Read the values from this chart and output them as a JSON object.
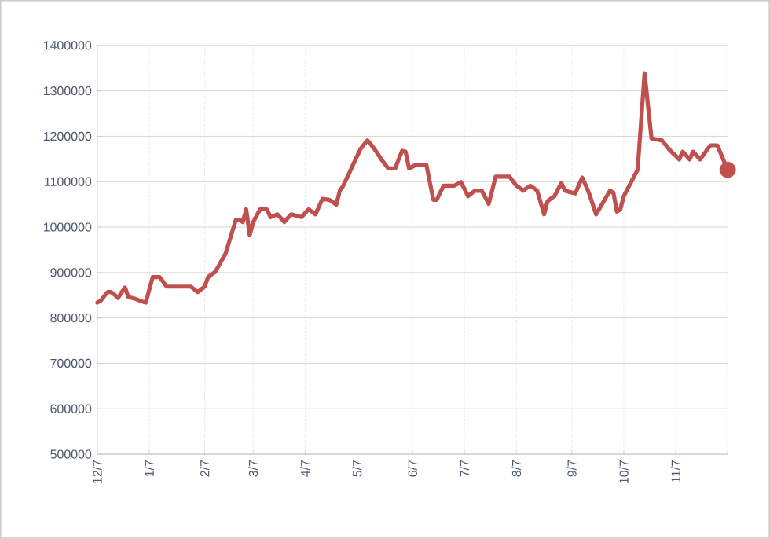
{
  "chart_data": {
    "type": "line",
    "categories": [
      "12/7",
      null,
      null,
      null,
      null,
      null,
      null,
      null,
      null,
      null,
      null,
      null,
      null,
      null,
      null,
      "1/7",
      null,
      null,
      null,
      null,
      null,
      null,
      null,
      null,
      null,
      null,
      null,
      null,
      null,
      null,
      null,
      "2/7",
      null,
      null,
      null,
      null,
      null,
      null,
      null,
      null,
      null,
      null,
      null,
      null,
      null,
      "3/7",
      null,
      null,
      null,
      null,
      null,
      null,
      null,
      null,
      null,
      null,
      null,
      null,
      null,
      null,
      "4/7",
      null,
      null,
      null,
      null,
      null,
      null,
      null,
      null,
      null,
      null,
      null,
      null,
      null,
      null,
      "5/7",
      null,
      null,
      null,
      null,
      null,
      null,
      null,
      null,
      null,
      null,
      null,
      null,
      null,
      null,
      null,
      "6/7",
      null,
      null,
      null,
      null,
      null,
      null,
      null,
      null,
      null,
      null,
      null,
      null,
      null,
      null,
      "7/7",
      null,
      null,
      null,
      null,
      null,
      null,
      null,
      null,
      null,
      null,
      null,
      null,
      null,
      null,
      "8/7",
      null,
      null,
      null,
      null,
      null,
      null,
      null,
      null,
      null,
      null,
      null,
      null,
      null,
      null,
      null,
      "9/7",
      null,
      null,
      null,
      null,
      null,
      null,
      null,
      null,
      null,
      null,
      null,
      null,
      null,
      null,
      "10/7",
      null,
      null,
      null,
      null,
      null,
      null,
      null,
      null,
      null,
      null,
      null,
      null,
      null,
      null,
      "11/7",
      null,
      null,
      null,
      null,
      null,
      null,
      null,
      null,
      null,
      null,
      null,
      null,
      null,
      null,
      null
    ],
    "ylim": [
      500000,
      1400000
    ],
    "yticks": [
      500000,
      600000,
      700000,
      800000,
      900000,
      1000000,
      1100000,
      1200000,
      1300000,
      1400000
    ],
    "grid": true,
    "marker": "none",
    "line_style": "solid",
    "series": [
      {
        "color": "#c0504d",
        "values": [
          834000,
          838000,
          848000,
          857000,
          857000,
          851000,
          844000,
          856000,
          867000,
          846000,
          844000,
          842000,
          839000,
          836000,
          834000,
          862000,
          890000,
          890000,
          890000,
          880000,
          869000,
          869000,
          869000,
          869000,
          869000,
          869000,
          869000,
          869000,
          863000,
          857000,
          863000,
          869000,
          890000,
          896000,
          901000,
          914000,
          928000,
          941000,
          966000,
          991000,
          1016000,
          1016000,
          1011000,
          1039000,
          982000,
          1011000,
          1025000,
          1039000,
          1039000,
          1039000,
          1022000,
          1025000,
          1028000,
          1020000,
          1011000,
          1020000,
          1028000,
          1026000,
          1024000,
          1022000,
          1031000,
          1039000,
          1034000,
          1028000,
          1045000,
          1062000,
          1061000,
          1060000,
          1055000,
          1049000,
          1080000,
          1091000,
          1107000,
          1123000,
          1140000,
          1156000,
          1172000,
          1182000,
          1191000,
          1182000,
          1172000,
          1161000,
          1149000,
          1139000,
          1129000,
          1129000,
          1129000,
          1149000,
          1168000,
          1166000,
          1129000,
          1133000,
          1137000,
          1137000,
          1137000,
          1137000,
          1099000,
          1060000,
          1060000,
          1076000,
          1091000,
          1091000,
          1091000,
          1091000,
          1095000,
          1099000,
          1084000,
          1068000,
          1074000,
          1080000,
          1080000,
          1080000,
          1066000,
          1051000,
          1081000,
          1111000,
          1111000,
          1111000,
          1111000,
          1111000,
          1101000,
          1091000,
          1086000,
          1080000,
          1086000,
          1091000,
          1086000,
          1080000,
          1054000,
          1028000,
          1057000,
          1063000,
          1068000,
          1083000,
          1097000,
          1080000,
          1078000,
          1076000,
          1074000,
          1092000,
          1109000,
          1092000,
          1074000,
          1051000,
          1028000,
          1041000,
          1054000,
          1067000,
          1080000,
          1076000,
          1034000,
          1039000,
          1068000,
          1083000,
          1097000,
          1112000,
          1126000,
          1233000,
          1339000,
          1267000,
          1195000,
          1194000,
          1192000,
          1191000,
          1182000,
          1172000,
          1164000,
          1157000,
          1149000,
          1166000,
          1158000,
          1149000,
          1166000,
          1158000,
          1149000,
          1159000,
          1170000,
          1180000,
          1180000,
          1180000,
          1162000,
          1144000,
          1126000
        ]
      },
      {
        "type": "scatter",
        "marker": "circle",
        "color": "#c0504d",
        "values": [
          null,
          null,
          null,
          null,
          null,
          null,
          null,
          null,
          null,
          null,
          null,
          null,
          null,
          null,
          null,
          null,
          null,
          null,
          null,
          null,
          null,
          null,
          null,
          null,
          null,
          null,
          null,
          null,
          null,
          null,
          null,
          null,
          null,
          null,
          null,
          null,
          null,
          null,
          null,
          null,
          null,
          null,
          null,
          null,
          null,
          null,
          null,
          null,
          null,
          null,
          null,
          null,
          null,
          null,
          null,
          null,
          null,
          null,
          null,
          null,
          null,
          null,
          null,
          null,
          null,
          null,
          null,
          null,
          null,
          null,
          null,
          null,
          null,
          null,
          null,
          null,
          null,
          null,
          null,
          null,
          null,
          null,
          null,
          null,
          null,
          null,
          null,
          null,
          null,
          null,
          null,
          null,
          null,
          null,
          null,
          null,
          null,
          null,
          null,
          null,
          null,
          null,
          null,
          null,
          null,
          null,
          null,
          null,
          null,
          null,
          null,
          null,
          null,
          null,
          null,
          null,
          null,
          null,
          null,
          null,
          null,
          null,
          null,
          null,
          null,
          null,
          null,
          null,
          null,
          null,
          null,
          null,
          null,
          null,
          null,
          null,
          null,
          null,
          null,
          null,
          null,
          null,
          null,
          null,
          null,
          null,
          null,
          null,
          null,
          null,
          null,
          null,
          null,
          null,
          null,
          null,
          null,
          null,
          null,
          null,
          null,
          null,
          null,
          null,
          null,
          null,
          null,
          null,
          null,
          null,
          null,
          null,
          null,
          null,
          null,
          null,
          null,
          null,
          null,
          null,
          null,
          null,
          1126000
        ]
      }
    ]
  }
}
